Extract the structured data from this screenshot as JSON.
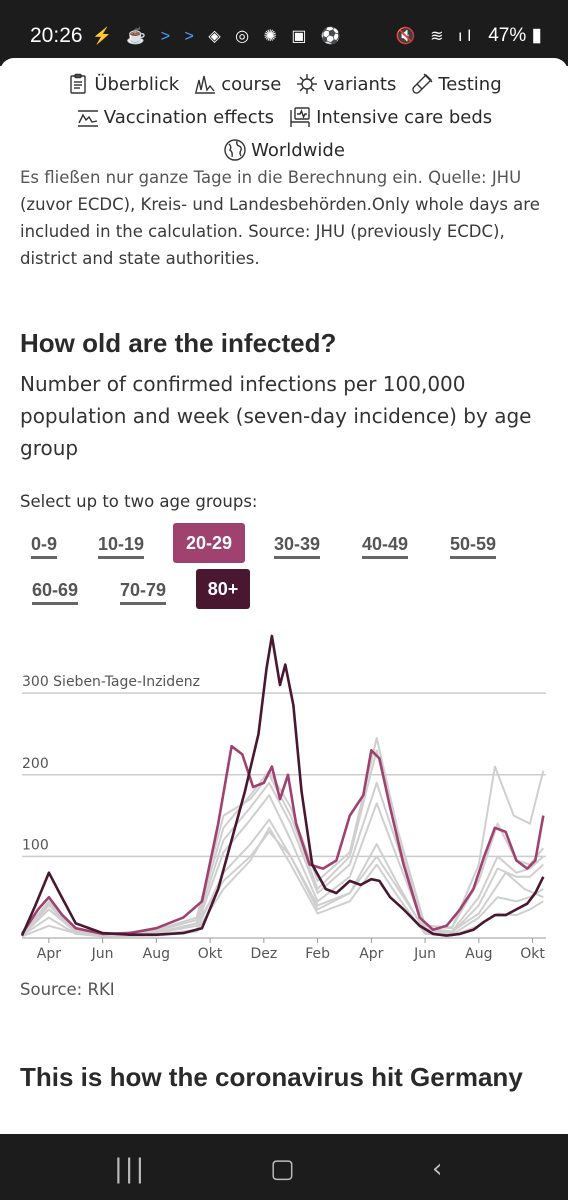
{
  "status": {
    "time": "20:26",
    "battery": "47%"
  },
  "nav": {
    "items": [
      {
        "label": "Überblick",
        "icon": "clipboard-icon"
      },
      {
        "label": "course",
        "icon": "line-chart-icon"
      },
      {
        "label": "variants",
        "icon": "virus-icon"
      },
      {
        "label": "Testing",
        "icon": "test-tube-icon"
      },
      {
        "label": "Vaccination effects",
        "icon": "syringe-icon"
      },
      {
        "label": "Intensive care beds",
        "icon": "icu-monitor-icon"
      },
      {
        "label": "Worldwide",
        "icon": "globe-icon"
      }
    ]
  },
  "intro": {
    "partial_line": "Es fließen nur ganze Tage in die Berechnung ein. Quelle: JHU",
    "text": "(zuvor ECDC), Kreis- und Landesbehörden.Only whole days are included in the calculation.  Source: JHU (previously ECDC), district and state authorities."
  },
  "section": {
    "title": "How old are the infected?",
    "subtitle": "Number of confirmed infections per 100,000 population and week (seven-day incidence) by age group",
    "select_label": "Select up to two age groups:"
  },
  "age_groups": [
    {
      "label": "0-9",
      "selected": false
    },
    {
      "label": "10-19",
      "selected": false
    },
    {
      "label": "20-29",
      "selected": true,
      "color": "#a0426f"
    },
    {
      "label": "30-39",
      "selected": false
    },
    {
      "label": "40-49",
      "selected": false
    },
    {
      "label": "50-59",
      "selected": false
    },
    {
      "label": "60-69",
      "selected": false
    },
    {
      "label": "70-79",
      "selected": false
    },
    {
      "label": "80+",
      "selected": true,
      "color": "#4a1730"
    }
  ],
  "chart_data": {
    "type": "line",
    "ylabel": "Sieben-Tage-Inzidenz",
    "ylim": [
      0,
      370
    ],
    "yticks": [
      100,
      200,
      300
    ],
    "top_tick_label": "300 Sieben-Tage-Inzidenz",
    "xlim": [
      0,
      19.5
    ],
    "x_ticks": [
      {
        "label": "Apr",
        "x": 1
      },
      {
        "label": "Jun",
        "x": 3
      },
      {
        "label": "Aug",
        "x": 5
      },
      {
        "label": "Okt",
        "x": 7
      },
      {
        "label": "Dez",
        "x": 9
      },
      {
        "label": "Feb",
        "x": 11
      },
      {
        "label": "Apr",
        "x": 13
      },
      {
        "label": "Jun",
        "x": 15
      },
      {
        "label": "Aug",
        "x": 17
      },
      {
        "label": "Okt",
        "x": 19
      }
    ],
    "grid": true,
    "legend": "none",
    "highlight_series": [
      {
        "name": "20-29",
        "color": "#a0426f",
        "points": [
          [
            0,
            5
          ],
          [
            0.6,
            35
          ],
          [
            1,
            50
          ],
          [
            1.5,
            28
          ],
          [
            2,
            12
          ],
          [
            3,
            5
          ],
          [
            4,
            6
          ],
          [
            5,
            12
          ],
          [
            6,
            25
          ],
          [
            6.7,
            45
          ],
          [
            7.3,
            140
          ],
          [
            7.8,
            235
          ],
          [
            8.2,
            225
          ],
          [
            8.6,
            185
          ],
          [
            9,
            190
          ],
          [
            9.3,
            210
          ],
          [
            9.6,
            170
          ],
          [
            9.9,
            200
          ],
          [
            10.2,
            140
          ],
          [
            10.7,
            90
          ],
          [
            11.2,
            85
          ],
          [
            11.7,
            95
          ],
          [
            12.2,
            150
          ],
          [
            12.7,
            175
          ],
          [
            13,
            230
          ],
          [
            13.3,
            220
          ],
          [
            13.7,
            160
          ],
          [
            14.2,
            90
          ],
          [
            14.8,
            25
          ],
          [
            15.3,
            10
          ],
          [
            15.8,
            15
          ],
          [
            16.3,
            35
          ],
          [
            16.8,
            60
          ],
          [
            17.2,
            100
          ],
          [
            17.6,
            135
          ],
          [
            18,
            130
          ],
          [
            18.4,
            95
          ],
          [
            18.8,
            85
          ],
          [
            19.1,
            95
          ],
          [
            19.4,
            150
          ]
        ]
      },
      {
        "name": "80+",
        "color": "#4a1730",
        "points": [
          [
            0,
            3
          ],
          [
            0.5,
            40
          ],
          [
            1,
            80
          ],
          [
            1.4,
            55
          ],
          [
            2,
            18
          ],
          [
            3,
            6
          ],
          [
            4,
            4
          ],
          [
            5,
            4
          ],
          [
            6,
            6
          ],
          [
            6.7,
            12
          ],
          [
            7.3,
            60
          ],
          [
            7.8,
            120
          ],
          [
            8.3,
            180
          ],
          [
            8.8,
            250
          ],
          [
            9.1,
            330
          ],
          [
            9.3,
            370
          ],
          [
            9.6,
            310
          ],
          [
            9.8,
            335
          ],
          [
            10.1,
            285
          ],
          [
            10.4,
            180
          ],
          [
            10.8,
            90
          ],
          [
            11.3,
            60
          ],
          [
            11.7,
            55
          ],
          [
            12.2,
            70
          ],
          [
            12.6,
            65
          ],
          [
            13,
            72
          ],
          [
            13.3,
            70
          ],
          [
            13.7,
            50
          ],
          [
            14.2,
            35
          ],
          [
            14.8,
            15
          ],
          [
            15.3,
            5
          ],
          [
            15.8,
            3
          ],
          [
            16.3,
            5
          ],
          [
            16.8,
            10
          ],
          [
            17.2,
            20
          ],
          [
            17.6,
            28
          ],
          [
            18,
            28
          ],
          [
            18.4,
            35
          ],
          [
            18.8,
            42
          ],
          [
            19.1,
            55
          ],
          [
            19.4,
            75
          ]
        ]
      }
    ],
    "other_series": [
      {
        "name": "0-9",
        "points": [
          [
            0,
            2
          ],
          [
            1,
            15
          ],
          [
            2,
            6
          ],
          [
            3,
            3
          ],
          [
            5,
            5
          ],
          [
            6.5,
            18
          ],
          [
            7.5,
            70
          ],
          [
            8.5,
            100
          ],
          [
            9.2,
            130
          ],
          [
            10,
            100
          ],
          [
            11,
            40
          ],
          [
            12.2,
            55
          ],
          [
            13.2,
            100
          ],
          [
            14,
            60
          ],
          [
            15,
            10
          ],
          [
            16,
            8
          ],
          [
            17,
            30
          ],
          [
            18,
            80
          ],
          [
            18.7,
            60
          ],
          [
            19.4,
            50
          ]
        ]
      },
      {
        "name": "10-19",
        "points": [
          [
            0,
            3
          ],
          [
            1,
            35
          ],
          [
            2,
            10
          ],
          [
            3,
            4
          ],
          [
            5,
            10
          ],
          [
            6.5,
            25
          ],
          [
            7.5,
            150
          ],
          [
            8.5,
            170
          ],
          [
            9.2,
            200
          ],
          [
            10,
            150
          ],
          [
            11,
            60
          ],
          [
            12.2,
            100
          ],
          [
            13.2,
            230
          ],
          [
            14,
            120
          ],
          [
            15,
            15
          ],
          [
            16,
            12
          ],
          [
            17,
            90
          ],
          [
            17.6,
            210
          ],
          [
            18.3,
            150
          ],
          [
            18.9,
            140
          ],
          [
            19.4,
            205
          ]
        ]
      },
      {
        "name": "30-39",
        "points": [
          [
            0,
            4
          ],
          [
            1,
            42
          ],
          [
            2,
            10
          ],
          [
            3,
            5
          ],
          [
            5,
            9
          ],
          [
            6.5,
            22
          ],
          [
            7.5,
            135
          ],
          [
            8.5,
            175
          ],
          [
            9.2,
            205
          ],
          [
            10,
            160
          ],
          [
            11,
            70
          ],
          [
            12.2,
            105
          ],
          [
            13.2,
            245
          ],
          [
            14,
            130
          ],
          [
            15,
            15
          ],
          [
            16,
            13
          ],
          [
            17,
            70
          ],
          [
            17.7,
            140
          ],
          [
            18.4,
            95
          ],
          [
            18.9,
            90
          ],
          [
            19.4,
            110
          ]
        ]
      },
      {
        "name": "40-49",
        "points": [
          [
            0,
            4
          ],
          [
            1,
            40
          ],
          [
            2,
            9
          ],
          [
            3,
            4
          ],
          [
            5,
            7
          ],
          [
            6.5,
            18
          ],
          [
            7.5,
            120
          ],
          [
            8.5,
            160
          ],
          [
            9.2,
            190
          ],
          [
            10,
            140
          ],
          [
            11,
            55
          ],
          [
            12.2,
            90
          ],
          [
            13.2,
            190
          ],
          [
            14,
            110
          ],
          [
            15,
            12
          ],
          [
            16,
            8
          ],
          [
            17,
            50
          ],
          [
            17.7,
            100
          ],
          [
            18.4,
            80
          ],
          [
            18.9,
            85
          ],
          [
            19.4,
            100
          ]
        ]
      },
      {
        "name": "50-59",
        "points": [
          [
            0,
            5
          ],
          [
            1,
            45
          ],
          [
            2,
            9
          ],
          [
            3,
            3
          ],
          [
            5,
            6
          ],
          [
            6.5,
            15
          ],
          [
            7.5,
            105
          ],
          [
            8.5,
            145
          ],
          [
            9.2,
            175
          ],
          [
            10,
            120
          ],
          [
            11,
            45
          ],
          [
            12.2,
            75
          ],
          [
            13.2,
            165
          ],
          [
            14,
            95
          ],
          [
            15,
            10
          ],
          [
            16,
            6
          ],
          [
            17,
            40
          ],
          [
            17.7,
            85
          ],
          [
            18.4,
            75
          ],
          [
            18.9,
            75
          ],
          [
            19.4,
            90
          ]
        ]
      },
      {
        "name": "60-69",
        "points": [
          [
            0,
            4
          ],
          [
            1,
            35
          ],
          [
            2,
            7
          ],
          [
            3,
            3
          ],
          [
            5,
            4
          ],
          [
            6.5,
            10
          ],
          [
            7.5,
            80
          ],
          [
            8.5,
            115
          ],
          [
            9.2,
            145
          ],
          [
            10,
            100
          ],
          [
            11,
            35
          ],
          [
            12.2,
            55
          ],
          [
            13.2,
            115
          ],
          [
            14,
            65
          ],
          [
            15,
            7
          ],
          [
            16,
            4
          ],
          [
            17,
            25
          ],
          [
            17.7,
            50
          ],
          [
            18.4,
            45
          ],
          [
            18.9,
            50
          ],
          [
            19.4,
            60
          ]
        ]
      },
      {
        "name": "70-79",
        "points": [
          [
            0,
            3
          ],
          [
            1,
            25
          ],
          [
            2,
            5
          ],
          [
            3,
            2
          ],
          [
            5,
            3
          ],
          [
            6.5,
            8
          ],
          [
            7.5,
            60
          ],
          [
            8.5,
            95
          ],
          [
            9.2,
            135
          ],
          [
            10,
            90
          ],
          [
            11,
            30
          ],
          [
            12.2,
            45
          ],
          [
            13.2,
            90
          ],
          [
            14,
            50
          ],
          [
            15,
            5
          ],
          [
            16,
            3
          ],
          [
            17,
            15
          ],
          [
            17.7,
            30
          ],
          [
            18.4,
            28
          ],
          [
            18.9,
            35
          ],
          [
            19.4,
            45
          ]
        ]
      }
    ]
  },
  "source_text": "Source: RKI",
  "next_section": {
    "title": "This is how the coronavirus hit Germany"
  }
}
